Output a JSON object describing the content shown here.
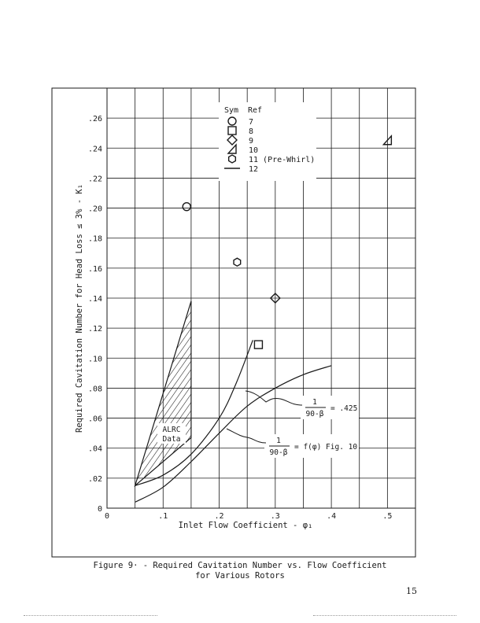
{
  "chart_data": {
    "type": "scatter",
    "title": "",
    "xlabel": "Inlet Flow Coefficient - φ₁",
    "ylabel": "Required Cavitation Number for Head Loss ≤ 3% - K₁",
    "xlim": [
      0,
      0.55
    ],
    "ylim": [
      0,
      0.28
    ],
    "grid": true,
    "x_ticks": [
      "0",
      ".1",
      ".2",
      ".3",
      ".4",
      ".5"
    ],
    "y_ticks": [
      "0",
      ".02",
      ".04",
      ".06",
      ".08",
      ".10",
      ".12",
      ".14",
      ".16",
      ".18",
      ".20",
      ".22",
      ".24",
      ".26"
    ],
    "legend": {
      "placement": "top-center",
      "header_sym": "Sym",
      "header_ref": "Ref",
      "entries": [
        {
          "symbol": "circle",
          "ref": "7"
        },
        {
          "symbol": "square",
          "ref": "8"
        },
        {
          "symbol": "diamond",
          "ref": "9"
        },
        {
          "symbol": "triangle",
          "ref": "10"
        },
        {
          "symbol": "hexagon",
          "ref": "11 (Pre-Whirl)"
        },
        {
          "symbol": "line",
          "ref": "12"
        }
      ]
    },
    "points": [
      {
        "symbol": "circle",
        "ref": "7",
        "x": 0.142,
        "y": 0.201
      },
      {
        "symbol": "square",
        "ref": "8",
        "x": 0.27,
        "y": 0.109
      },
      {
        "symbol": "diamond",
        "ref": "9",
        "x": 0.3,
        "y": 0.14
      },
      {
        "symbol": "triangle",
        "ref": "10",
        "x": 0.5,
        "y": 0.245
      },
      {
        "symbol": "hexagon",
        "ref": "11 (Pre-Whirl)",
        "x": 0.232,
        "y": 0.164
      }
    ],
    "curves": [
      {
        "name": "1/(90-β) = .425",
        "x": [
          0.05,
          0.1,
          0.15,
          0.2,
          0.25,
          0.3,
          0.35,
          0.4
        ],
        "y": [
          0.004,
          0.014,
          0.031,
          0.05,
          0.068,
          0.08,
          0.089,
          0.095
        ]
      },
      {
        "name": "1/(90-β) = f(φ) Fig. 10",
        "x": [
          0.05,
          0.1,
          0.15,
          0.2,
          0.23,
          0.26
        ],
        "y": [
          0.015,
          0.022,
          0.036,
          0.06,
          0.083,
          0.112
        ]
      }
    ],
    "shaded_region": {
      "label_line1": "ALRC",
      "label_line2": "Data",
      "polygon": [
        [
          0.05,
          0.015
        ],
        [
          0.15,
          0.138
        ],
        [
          0.15,
          0.047
        ]
      ]
    },
    "annotations": {
      "a1_num": "1",
      "a1_den": "90-β",
      "a1_val": "= .425",
      "a2_num": "1",
      "a2_den": "90-β",
      "a2_val": "= f(φ) Fig. 10"
    }
  },
  "caption": {
    "line1": "Figure 9· - Required Cavitation Number vs. Flow Coefficient",
    "line2": "for Various Rotors"
  },
  "page_number": "15"
}
